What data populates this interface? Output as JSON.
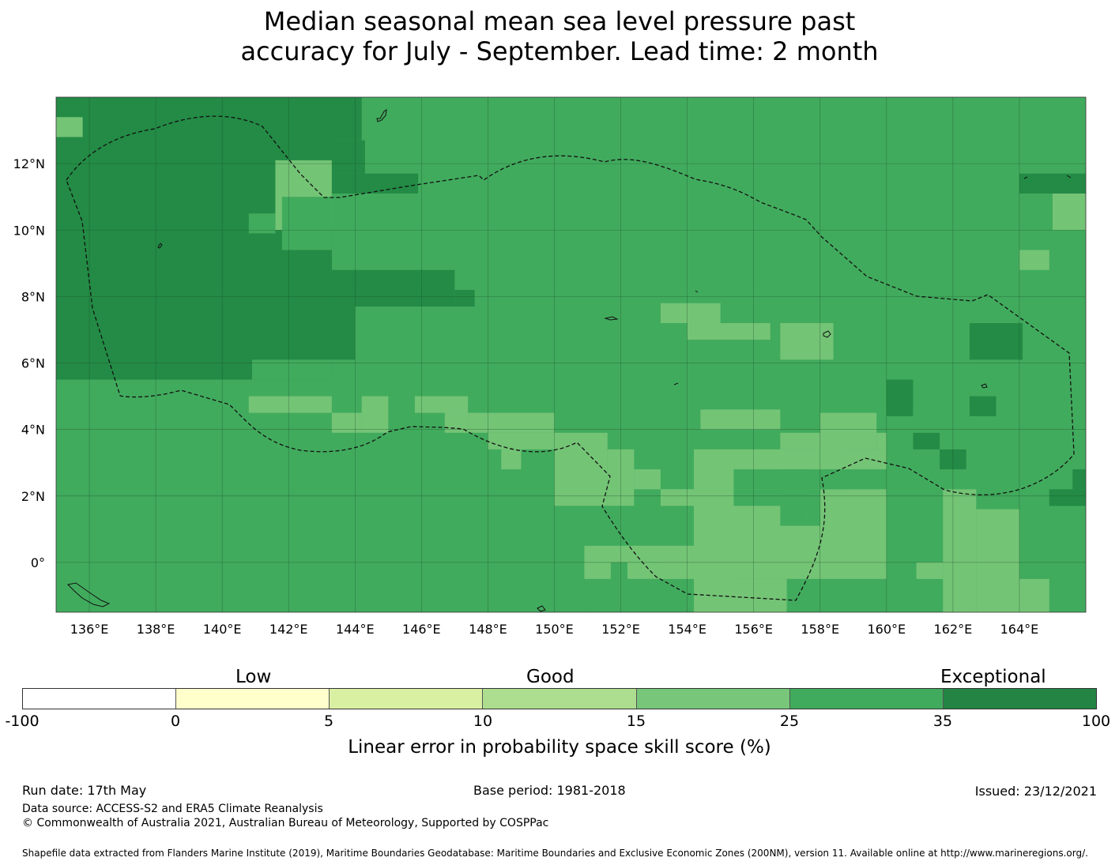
{
  "title": {
    "line1": "Median seasonal mean sea level pressure past",
    "line2": "accuracy for July - September. Lead time: 2 month"
  },
  "map": {
    "lon_labels": [
      "136°E",
      "138°E",
      "140°E",
      "142°E",
      "144°E",
      "146°E",
      "148°E",
      "150°E",
      "152°E",
      "154°E",
      "156°E",
      "158°E",
      "160°E",
      "162°E",
      "164°E"
    ],
    "lat_labels": [
      "12°N",
      "10°N",
      "8°N",
      "6°N",
      "4°N",
      "2°N",
      "0°"
    ],
    "extent": {
      "lon_min": 135.0,
      "lon_max": 166.0,
      "lat_min": -1.5,
      "lat_max": 14.0
    },
    "colors": {
      "exceptional": "#238b45",
      "good_high": "#41ab5d",
      "good_mid": "#74c476",
      "ocean_default": "#41ab5d"
    }
  },
  "colorbar": {
    "categories": [
      "Low",
      "Good",
      "Exceptional"
    ],
    "ticks": [
      "-100",
      "0",
      "5",
      "10",
      "15",
      "25",
      "35",
      "100"
    ],
    "colors": [
      "#ffffff",
      "#ffffcc",
      "#d9f0a3",
      "#addd8e",
      "#78c679",
      "#41ab5d",
      "#238443"
    ],
    "label": "Linear error in probability space skill score (%)"
  },
  "footer": {
    "run_date": "Run date: 17th May",
    "base_period": "Base period: 1981-2018",
    "issued": "Issued: 23/12/2021",
    "data_source": "Data source: ACCESS-S2 and ERA5 Climate Reanalysis",
    "copyright": "© Commonwealth of Australia 2021, Australian Bureau of Meteorology, Supported by COSPPac",
    "shapefile": "Shapefile data extracted from Flanders Marine Institute (2019), Maritime Boundaries Geodatabase: Maritime Boundaries and Exclusive Economic Zones (200NM), version 11. Available online at http://www.marineregions.org/."
  }
}
